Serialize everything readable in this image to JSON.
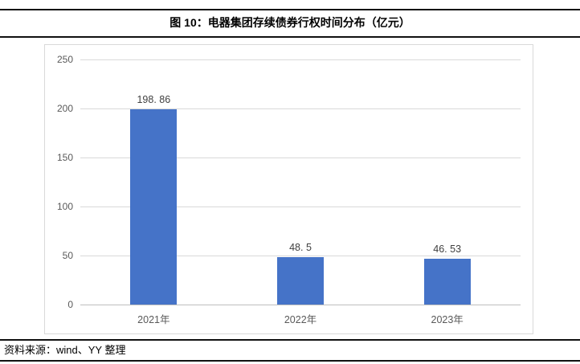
{
  "figure": {
    "title": "图 10：电器集团存续债券行权时间分布（亿元）",
    "source": "资料来源：wind、YY 整理"
  },
  "colors": {
    "bar": "#4573c8",
    "gridline": "#d9d9d9",
    "axis_line": "#bfbfbf",
    "frame_border": "#d9d9d9",
    "axis_text": "#595959",
    "value_text": "#3f3f3f",
    "rule": "#111111"
  },
  "chart_data": {
    "type": "bar",
    "title": "图 10：电器集团存续债券行权时间分布（亿元）",
    "categories": [
      "2021年",
      "2022年",
      "2023年"
    ],
    "values": [
      198.86,
      48.5,
      46.53
    ],
    "value_labels": [
      "198. 86",
      "48. 5",
      "46. 53"
    ],
    "xlabel": "",
    "ylabel": "",
    "ylim": [
      0,
      250
    ],
    "yticks": [
      0,
      50,
      100,
      150,
      200,
      250
    ],
    "grid": true,
    "legend": "none",
    "unit": "亿元"
  }
}
